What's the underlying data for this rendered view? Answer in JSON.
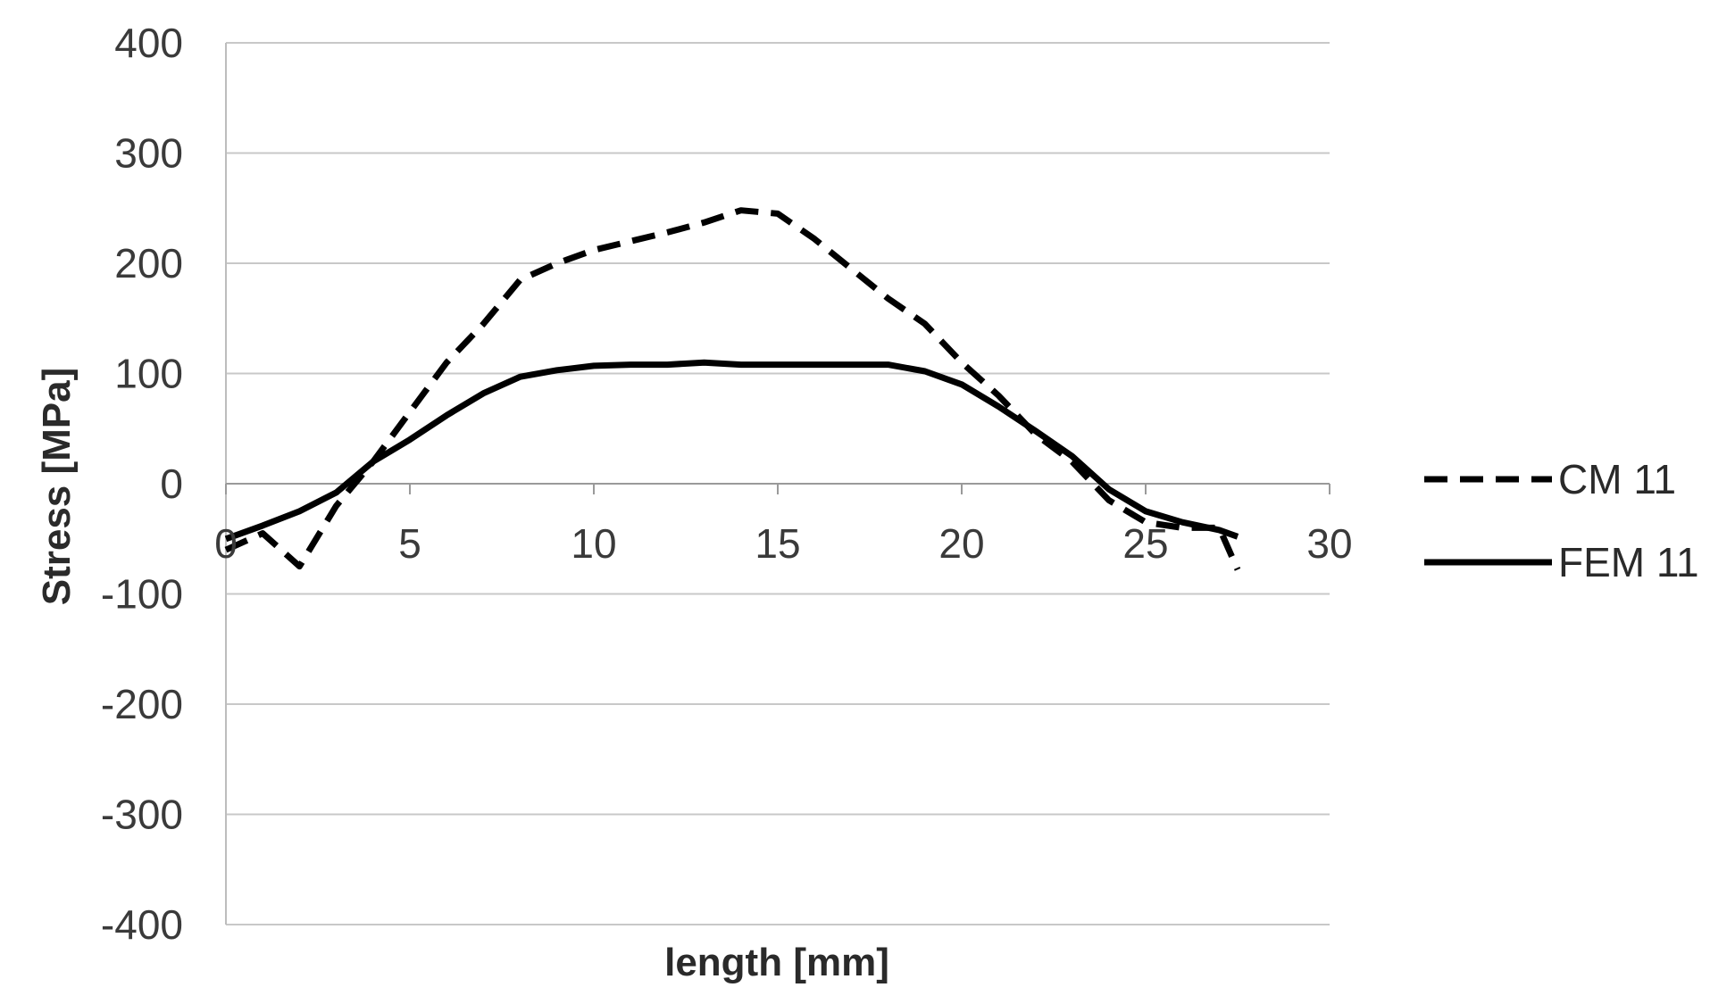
{
  "chart_data": {
    "type": "line",
    "xlabel": "length [mm]",
    "ylabel": "Stress [MPa]",
    "xlim": [
      0,
      30
    ],
    "ylim": [
      -400,
      400
    ],
    "xticks": [
      0,
      5,
      10,
      15,
      20,
      25,
      30
    ],
    "yticks": [
      400,
      300,
      200,
      100,
      0,
      -100,
      -200,
      -300,
      -400
    ],
    "grid": "horizontal",
    "legend_position": "right",
    "series": [
      {
        "name": "CM 11",
        "style": "dashed",
        "color": "#000000",
        "x": [
          0,
          1,
          2,
          3,
          4,
          5,
          6,
          7,
          8,
          9,
          10,
          11,
          12,
          13,
          14,
          15,
          16,
          17,
          18,
          19,
          20,
          21,
          22,
          23,
          24,
          25,
          26,
          27,
          27.5
        ],
        "y": [
          -60,
          -45,
          -75,
          -20,
          20,
          65,
          110,
          145,
          185,
          200,
          212,
          220,
          228,
          237,
          248,
          245,
          222,
          195,
          168,
          145,
          110,
          80,
          45,
          20,
          -15,
          -35,
          -40,
          -40,
          -78
        ]
      },
      {
        "name": "FEM 11",
        "style": "solid",
        "color": "#000000",
        "x": [
          0,
          1,
          2,
          3,
          4,
          5,
          6,
          7,
          8,
          9,
          10,
          11,
          12,
          13,
          14,
          15,
          16,
          17,
          18,
          19,
          20,
          21,
          22,
          23,
          24,
          25,
          26,
          27,
          27.5
        ],
        "y": [
          -50,
          -38,
          -25,
          -8,
          20,
          40,
          62,
          82,
          97,
          103,
          107,
          108,
          108,
          110,
          108,
          108,
          108,
          108,
          108,
          102,
          90,
          70,
          48,
          25,
          -5,
          -25,
          -35,
          -42,
          -48
        ]
      }
    ]
  }
}
